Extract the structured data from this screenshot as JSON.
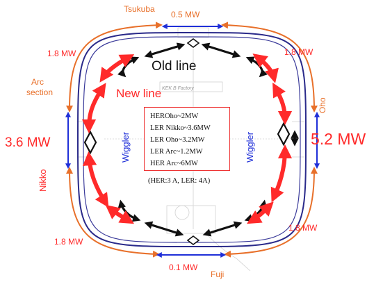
{
  "labels": {
    "tsukuba": "Tsukuba",
    "top_power": "0.5 MW",
    "top_left_power": "1.8 MW",
    "top_right_power": "1.8 MW",
    "arc_section": [
      "Arc",
      "section"
    ],
    "old_line": "Old line",
    "new_line": "New line",
    "kek_factory": "KEK B Factory",
    "oho": "Oho",
    "oho_power": "5.2 MW",
    "nikko_power": "3.6 MW",
    "nikko": "Nikko",
    "wiggler_left": "Wiggler",
    "wiggler_right": "Wiggler",
    "bottom_left_power": "1.8 MW",
    "bottom_right_power": "1.8 MW",
    "bottom_power": "0.1 MW",
    "fuji": "Fuji"
  },
  "info_box": {
    "lines": [
      "HEROho~2MW",
      "LER Nikko~3.6MW",
      "LER Oho~3.2MW",
      "LER  Arc~1.2MW",
      "HER Arc~6MW"
    ],
    "note": "(HER:3 A, LER: 4A)"
  },
  "colors": {
    "orange": "#e8702a",
    "red": "#ff2a2a",
    "blue": "#1f2fd8",
    "black": "#111111",
    "ring": "#2a2a8a"
  }
}
